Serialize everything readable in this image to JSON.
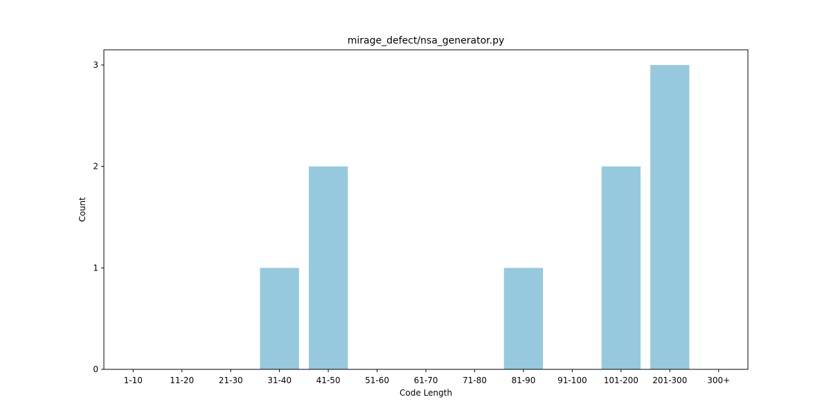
{
  "chart_data": {
    "type": "bar",
    "title": "mirage_defect/nsa_generator.py",
    "xlabel": "Code Length",
    "ylabel": "Count",
    "categories": [
      "1-10",
      "11-20",
      "21-30",
      "31-40",
      "41-50",
      "51-60",
      "61-70",
      "71-80",
      "81-90",
      "91-100",
      "101-200",
      "201-300",
      "300+"
    ],
    "values": [
      0,
      0,
      0,
      1,
      2,
      0,
      0,
      0,
      1,
      0,
      2,
      3,
      0
    ],
    "ylim": [
      0,
      3.15
    ],
    "yticks": [
      0,
      1,
      2,
      3
    ],
    "bar_color": "#96c9dd",
    "grid": false
  }
}
